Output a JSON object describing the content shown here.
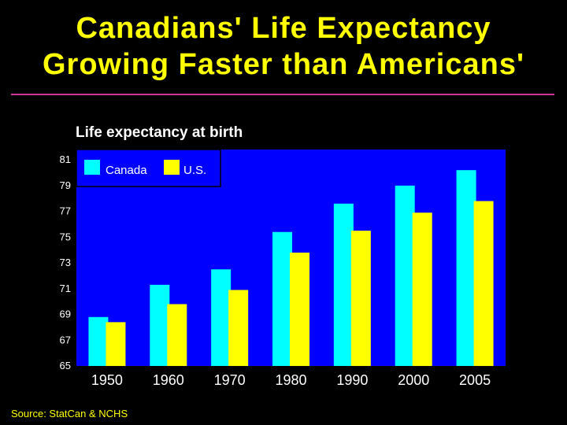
{
  "slide": {
    "title_line1": "Canadians' Life Expectancy",
    "title_line2": "Growing Faster than Americans'",
    "source": "Source: StatCan & NCHS",
    "colors": {
      "background": "#000000",
      "title": "#ffff00",
      "rule": "#cc3399",
      "plot_bg": "#0000ff",
      "canada": "#00ffff",
      "us": "#ffff00"
    }
  },
  "chart_data": {
    "type": "bar",
    "title": "Life expectancy at birth",
    "categories": [
      "1950",
      "1960",
      "1970",
      "1980",
      "1990",
      "2000",
      "2005"
    ],
    "series": [
      {
        "name": "Canada",
        "values": [
          68.8,
          71.3,
          72.5,
          75.4,
          77.6,
          79.0,
          80.2
        ]
      },
      {
        "name": "U.S.",
        "values": [
          68.4,
          69.8,
          70.9,
          73.8,
          75.5,
          76.9,
          77.8
        ]
      }
    ],
    "yticks": [
      65,
      67,
      69,
      71,
      73,
      75,
      77,
      79,
      81
    ],
    "ylim": [
      65,
      81.8
    ],
    "grid": false,
    "legend": "top-left",
    "xlabel": "",
    "ylabel": ""
  }
}
